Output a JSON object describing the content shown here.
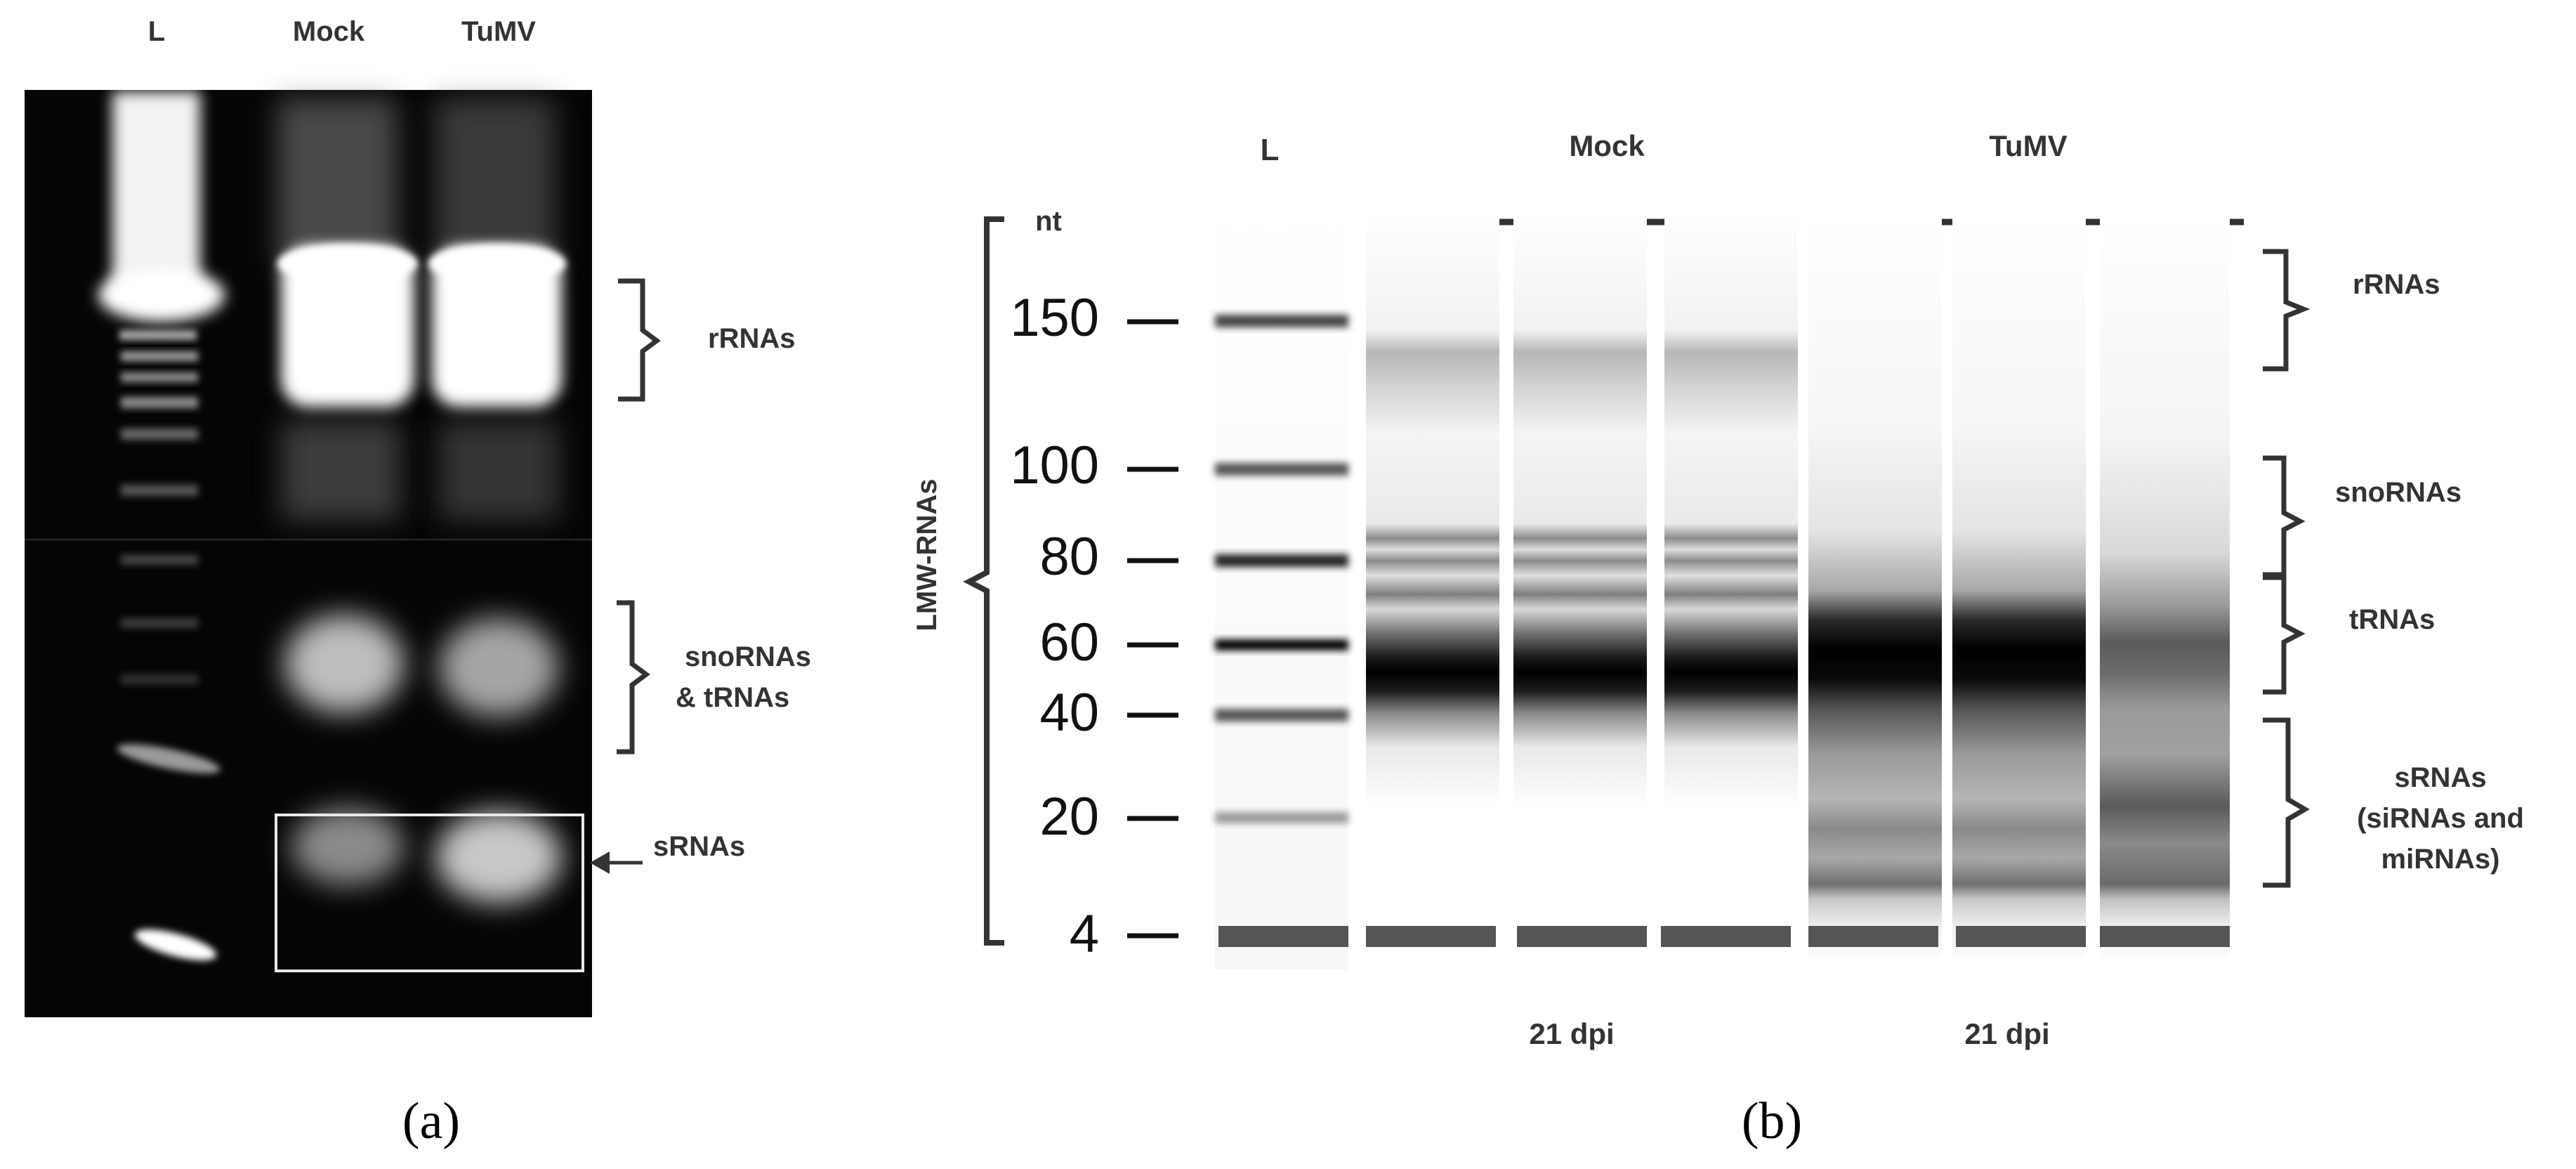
{
  "panel_a": {
    "lane_labels": [
      "L",
      "Mock",
      "TuMV"
    ],
    "annotations": {
      "rrnas": "rRNAs",
      "snorna_line1": "snoRNAs",
      "snorna_line2": "& tRNAs",
      "srnas": "sRNAs"
    },
    "caption": "(a)"
  },
  "panel_b": {
    "lane_header_L": "L",
    "group_mock": "Mock",
    "group_tumv": "TuMV",
    "unit": "nt",
    "axis_label": "LMW-RNAs",
    "ladder_ticks": [
      "150",
      "100",
      "80",
      "60",
      "40",
      "20",
      "4"
    ],
    "annotations": {
      "rrnas": "rRNAs",
      "snornas": "snoRNAs",
      "trnas": "tRNAs",
      "srnas_line1": "sRNAs",
      "srnas_line2": "(siRNAs and",
      "srnas_line3": "miRNAs)"
    },
    "time_mock": "21 dpi",
    "time_tumv": "21 dpi",
    "caption": "(b)"
  }
}
